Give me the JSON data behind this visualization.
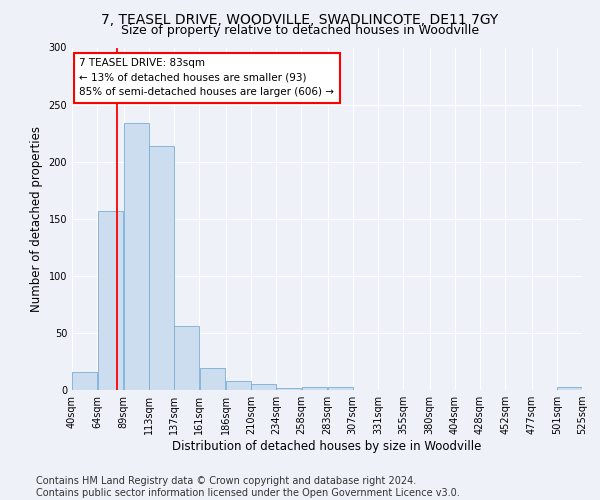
{
  "title": "7, TEASEL DRIVE, WOODVILLE, SWADLINCOTE, DE11 7GY",
  "subtitle": "Size of property relative to detached houses in Woodville",
  "xlabel": "Distribution of detached houses by size in Woodville",
  "ylabel": "Number of detached properties",
  "bar_color": "#ccddf0",
  "bar_edge_color": "#7aadd4",
  "vline_x": 83,
  "vline_color": "red",
  "annotation_text": "7 TEASEL DRIVE: 83sqm\n← 13% of detached houses are smaller (93)\n85% of semi-detached houses are larger (606) →",
  "annotation_box_color": "white",
  "annotation_box_edge": "red",
  "bin_edges": [
    40,
    64,
    89,
    113,
    137,
    161,
    186,
    210,
    234,
    258,
    283,
    307,
    331,
    355,
    380,
    404,
    428,
    452,
    477,
    501,
    525
  ],
  "bin_heights": [
    16,
    157,
    234,
    214,
    56,
    19,
    8,
    5,
    2,
    3,
    3,
    0,
    0,
    0,
    0,
    0,
    0,
    0,
    0,
    3
  ],
  "xlim": [
    40,
    525
  ],
  "ylim": [
    0,
    300
  ],
  "yticks": [
    0,
    50,
    100,
    150,
    200,
    250,
    300
  ],
  "xtick_labels": [
    "40sqm",
    "64sqm",
    "89sqm",
    "113sqm",
    "137sqm",
    "161sqm",
    "186sqm",
    "210sqm",
    "234sqm",
    "258sqm",
    "283sqm",
    "307sqm",
    "331sqm",
    "355sqm",
    "380sqm",
    "404sqm",
    "428sqm",
    "452sqm",
    "477sqm",
    "501sqm",
    "525sqm"
  ],
  "footer_text": "Contains HM Land Registry data © Crown copyright and database right 2024.\nContains public sector information licensed under the Open Government Licence v3.0.",
  "background_color": "#eef2f8",
  "grid_color": "#ffffff",
  "title_fontsize": 10,
  "subtitle_fontsize": 9,
  "axis_label_fontsize": 8.5,
  "tick_fontsize": 7,
  "footer_fontsize": 7,
  "annot_fontsize": 7.5
}
